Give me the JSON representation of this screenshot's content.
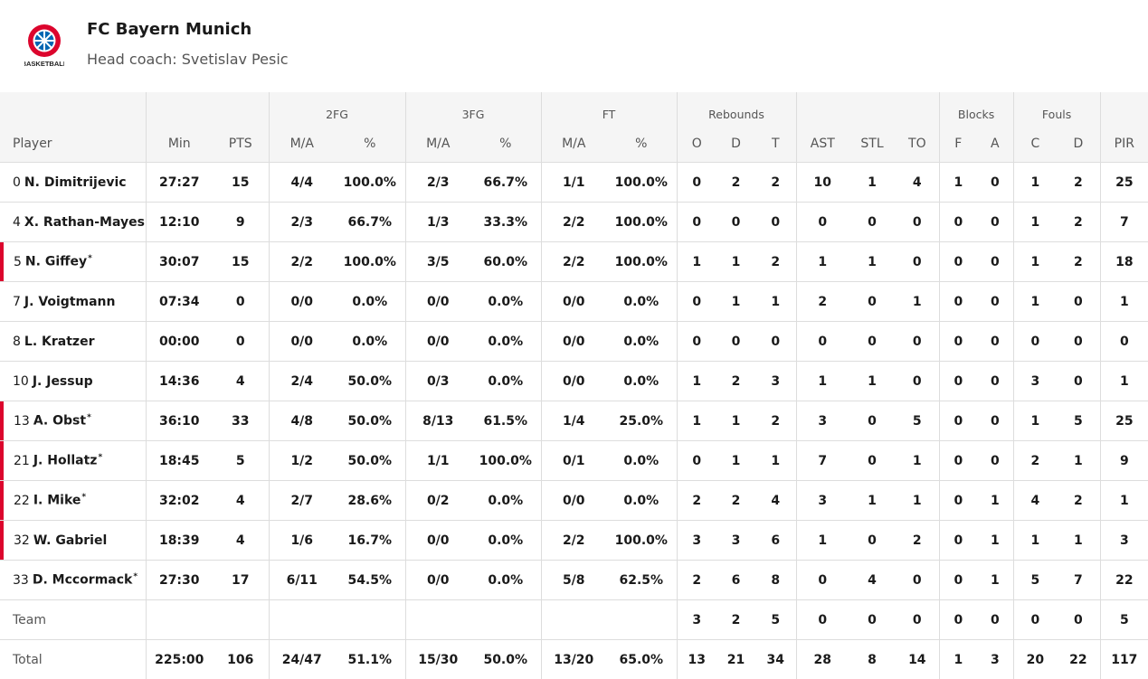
{
  "header": {
    "title": "FC Bayern Munich",
    "subtitle": "Head coach: Svetislav Pesic",
    "logo_caption": "BASKETBALL"
  },
  "table": {
    "groups": [
      "2FG",
      "3FG",
      "FT",
      "Rebounds",
      "Blocks",
      "Fouls"
    ],
    "columns": [
      "Player",
      "Min",
      "PTS",
      "M/A",
      "%",
      "M/A",
      "%",
      "M/A",
      "%",
      "O",
      "D",
      "T",
      "AST",
      "STL",
      "TO",
      "F",
      "A",
      "C",
      "D",
      "PIR"
    ],
    "rows": [
      {
        "no": "0",
        "name": "N. Dimitrijevic",
        "highlight": false,
        "stats": [
          "27:27",
          "15",
          "4/4",
          "100.0%",
          "2/3",
          "66.7%",
          "1/1",
          "100.0%",
          "0",
          "2",
          "2",
          "10",
          "1",
          "4",
          "1",
          "0",
          "1",
          "2",
          "25"
        ]
      },
      {
        "no": "4",
        "name": "X. Rathan-Mayes",
        "highlight": false,
        "stats": [
          "12:10",
          "9",
          "2/3",
          "66.7%",
          "1/3",
          "33.3%",
          "2/2",
          "100.0%",
          "0",
          "0",
          "0",
          "0",
          "0",
          "0",
          "0",
          "0",
          "1",
          "2",
          "7"
        ]
      },
      {
        "no": "5",
        "name": "N. Giffey",
        "star": "*",
        "highlight": true,
        "stats": [
          "30:07",
          "15",
          "2/2",
          "100.0%",
          "3/5",
          "60.0%",
          "2/2",
          "100.0%",
          "1",
          "1",
          "2",
          "1",
          "1",
          "0",
          "0",
          "0",
          "1",
          "2",
          "18"
        ]
      },
      {
        "no": "7",
        "name": "J. Voigtmann",
        "highlight": false,
        "stats": [
          "07:34",
          "0",
          "0/0",
          "0.0%",
          "0/0",
          "0.0%",
          "0/0",
          "0.0%",
          "0",
          "1",
          "1",
          "2",
          "0",
          "1",
          "0",
          "0",
          "1",
          "0",
          "1"
        ]
      },
      {
        "no": "8",
        "name": "L. Kratzer",
        "highlight": false,
        "stats": [
          "00:00",
          "0",
          "0/0",
          "0.0%",
          "0/0",
          "0.0%",
          "0/0",
          "0.0%",
          "0",
          "0",
          "0",
          "0",
          "0",
          "0",
          "0",
          "0",
          "0",
          "0",
          "0"
        ]
      },
      {
        "no": "10",
        "name": "J. Jessup",
        "highlight": false,
        "stats": [
          "14:36",
          "4",
          "2/4",
          "50.0%",
          "0/3",
          "0.0%",
          "0/0",
          "0.0%",
          "1",
          "2",
          "3",
          "1",
          "1",
          "0",
          "0",
          "0",
          "3",
          "0",
          "1"
        ]
      },
      {
        "no": "13",
        "name": "A. Obst",
        "star": "*",
        "highlight": true,
        "stats": [
          "36:10",
          "33",
          "4/8",
          "50.0%",
          "8/13",
          "61.5%",
          "1/4",
          "25.0%",
          "1",
          "1",
          "2",
          "3",
          "0",
          "5",
          "0",
          "0",
          "1",
          "5",
          "25"
        ]
      },
      {
        "no": "21",
        "name": "J. Hollatz",
        "star": "*",
        "highlight": true,
        "stats": [
          "18:45",
          "5",
          "1/2",
          "50.0%",
          "1/1",
          "100.0%",
          "0/1",
          "0.0%",
          "0",
          "1",
          "1",
          "7",
          "0",
          "1",
          "0",
          "0",
          "2",
          "1",
          "9"
        ]
      },
      {
        "no": "22",
        "name": "I. Mike",
        "star": "*",
        "highlight": true,
        "stats": [
          "32:02",
          "4",
          "2/7",
          "28.6%",
          "0/2",
          "0.0%",
          "0/0",
          "0.0%",
          "2",
          "2",
          "4",
          "3",
          "1",
          "1",
          "0",
          "1",
          "4",
          "2",
          "1"
        ]
      },
      {
        "no": "32",
        "name": "W. Gabriel",
        "highlight": true,
        "stats": [
          "18:39",
          "4",
          "1/6",
          "16.7%",
          "0/0",
          "0.0%",
          "2/2",
          "100.0%",
          "3",
          "3",
          "6",
          "1",
          "0",
          "2",
          "0",
          "1",
          "1",
          "1",
          "3"
        ]
      },
      {
        "no": "33",
        "name": "D. Mccormack",
        "star": "*",
        "highlight": false,
        "stats": [
          "27:30",
          "17",
          "6/11",
          "54.5%",
          "0/0",
          "0.0%",
          "5/8",
          "62.5%",
          "2",
          "6",
          "8",
          "0",
          "4",
          "0",
          "0",
          "1",
          "5",
          "7",
          "22"
        ]
      }
    ],
    "team": {
      "label": "Team",
      "stats": [
        null,
        null,
        null,
        null,
        null,
        null,
        null,
        null,
        "3",
        "2",
        "5",
        "0",
        "0",
        "0",
        "0",
        "0",
        "0",
        "0",
        "5"
      ]
    },
    "total": {
      "label": "Total",
      "stats": [
        "225:00",
        "106",
        "24/47",
        "51.1%",
        "15/30",
        "50.0%",
        "13/20",
        "65.0%",
        "13",
        "21",
        "34",
        "28",
        "8",
        "14",
        "1",
        "3",
        "20",
        "22",
        "117"
      ]
    }
  }
}
